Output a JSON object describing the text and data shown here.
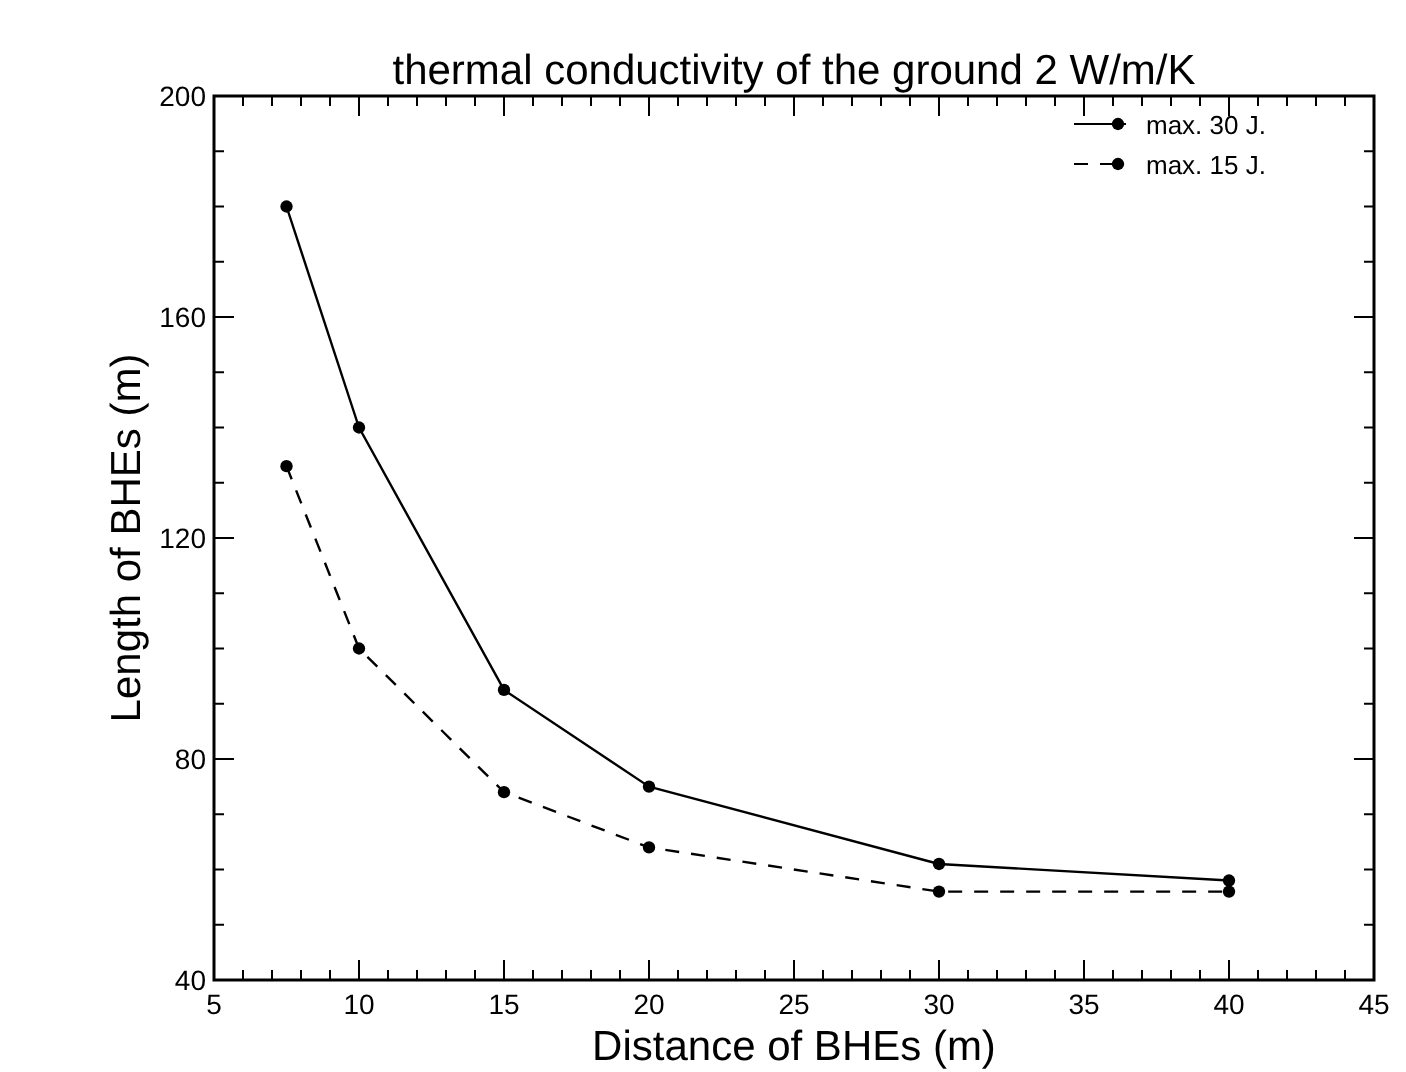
{
  "chart_data": {
    "type": "line",
    "title": "thermal conductivity of the ground 2 W/m/K",
    "xlabel": "Distance of BHEs (m)",
    "ylabel": "Length of BHEs (m)",
    "x": [
      7.5,
      10,
      15,
      20,
      30,
      40
    ],
    "series": [
      {
        "name": "max. 30 J.",
        "color": "#000000",
        "values": [
          180,
          140,
          92.5,
          75,
          61,
          58
        ],
        "line_style": "solid"
      },
      {
        "name": "max. 15 J.",
        "color": "#000000",
        "values": [
          133,
          100,
          74,
          64,
          56,
          56
        ],
        "line_style": "dashed"
      }
    ],
    "xlim": [
      5,
      45
    ],
    "xticks": [
      5,
      {
        "value": 6,
        "label": null
      },
      {
        "value": 7,
        "label": null
      },
      {
        "value": 8,
        "label": null
      },
      {
        "value": 9,
        "label": null
      },
      10,
      {
        "value": 11,
        "label": null
      },
      {
        "value": 12,
        "label": null
      },
      {
        "value": 13,
        "label": null
      },
      {
        "value": 14,
        "label": null
      },
      15,
      {
        "value": 16,
        "label": null
      },
      {
        "value": 17,
        "label": null
      },
      {
        "value": 18,
        "label": null
      },
      {
        "value": 19,
        "label": null
      },
      20,
      {
        "value": 21,
        "label": null
      },
      {
        "value": 22,
        "label": null
      },
      {
        "value": 23,
        "label": null
      },
      {
        "value": 24,
        "label": null
      },
      25,
      {
        "value": 26,
        "label": null
      },
      {
        "value": 27,
        "label": null
      },
      {
        "value": 28,
        "label": null
      },
      {
        "value": 29,
        "label": null
      },
      30,
      {
        "value": 31,
        "label": null
      },
      {
        "value": 32,
        "label": null
      },
      {
        "value": 33,
        "label": null
      },
      {
        "value": 34,
        "label": null
      },
      35,
      {
        "value": 36,
        "label": null
      },
      {
        "value": 37,
        "label": null
      },
      {
        "value": 38,
        "label": null
      },
      {
        "value": 39,
        "label": null
      },
      40,
      {
        "value": 41,
        "label": null
      },
      {
        "value": 42,
        "label": null
      },
      {
        "value": 43,
        "label": null
      },
      {
        "value": 44,
        "label": null
      },
      45
    ],
    "ylim": [
      40,
      200
    ],
    "yticks": [
      40,
      {
        "value": 50,
        "label": null
      },
      {
        "value": 60,
        "label": null
      },
      {
        "value": 70,
        "label": null
      },
      80,
      {
        "value": 90,
        "label": null
      },
      {
        "value": 100,
        "label": null
      },
      {
        "value": 110,
        "label": null
      },
      120,
      {
        "value": 130,
        "label": null
      },
      {
        "value": 140,
        "label": null
      },
      {
        "value": 150,
        "label": null
      },
      160,
      {
        "value": 170,
        "label": null
      },
      {
        "value": 180,
        "label": null
      },
      {
        "value": 190,
        "label": null
      },
      200
    ],
    "grid": false,
    "legend": "top right",
    "marker": "circle"
  }
}
